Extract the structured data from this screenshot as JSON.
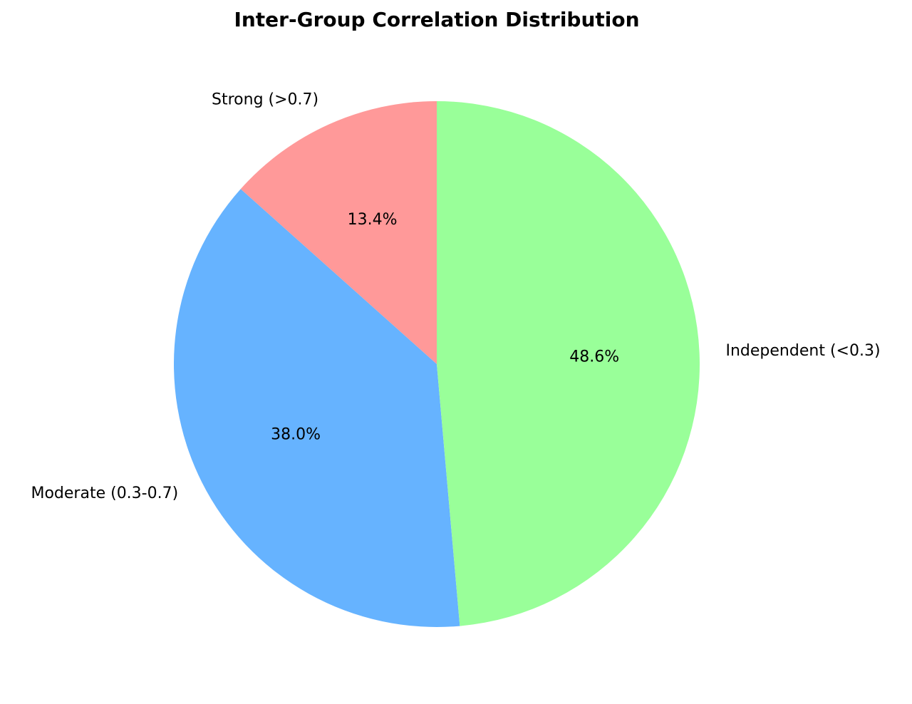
{
  "chart_data": {
    "type": "pie",
    "title": "Inter-Group Correlation Distribution",
    "slices": [
      {
        "label": "Strong (>0.7)",
        "value": 13.4,
        "pct_label": "13.4%",
        "color": "#ff9999"
      },
      {
        "label": "Moderate (0.3-0.7)",
        "value": 38.0,
        "pct_label": "38.0%",
        "color": "#66b3ff"
      },
      {
        "label": "Independent (<0.3)",
        "value": 48.6,
        "pct_label": "48.6%",
        "color": "#99ff99"
      }
    ],
    "start_angle_deg": 90,
    "direction": "counterclockwise",
    "legend": "none"
  }
}
